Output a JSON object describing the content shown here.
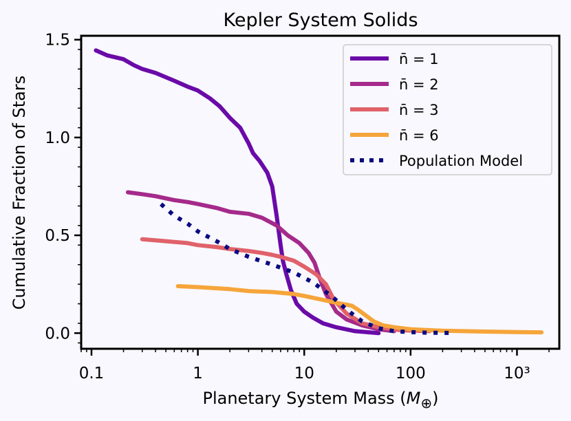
{
  "chart_data": {
    "type": "line",
    "title": "Kepler System Solids",
    "xlabel": "Planetary System Mass (M⊕)",
    "xlabel_main": "Planetary System Mass (",
    "xlabel_sym": "M",
    "xlabel_sub": "⊕",
    "xlabel_close": ")",
    "ylabel": "Cumulative Fraction of Stars",
    "xscale": "log",
    "xlim": [
      0.08,
      2500
    ],
    "ylim": [
      -0.08,
      1.52
    ],
    "xticks": [
      {
        "value": 0.1,
        "label": "0.1"
      },
      {
        "value": 1,
        "label": "1"
      },
      {
        "value": 10,
        "label": "10"
      },
      {
        "value": 100,
        "label": "100"
      },
      {
        "value": 1000,
        "label": "10³"
      }
    ],
    "yticks": [
      {
        "value": 0.0,
        "label": "0.0"
      },
      {
        "value": 0.5,
        "label": "0.5"
      },
      {
        "value": 1.0,
        "label": "1.0"
      },
      {
        "value": 1.5,
        "label": "1.5"
      }
    ],
    "legend_position": "top-right",
    "series": [
      {
        "name": "n̄ = 1",
        "legend_label": "n̄ = 1",
        "color": "#6a0aa8",
        "style": "solid",
        "x": [
          0.11,
          0.14,
          0.2,
          0.25,
          0.3,
          0.4,
          0.6,
          0.8,
          1.0,
          1.3,
          1.6,
          2.0,
          2.5,
          3.0,
          3.3,
          3.8,
          4.5,
          5.0,
          5.5,
          6.0,
          6.3,
          6.8,
          7.5,
          8.5,
          10,
          12,
          15,
          20,
          30,
          50
        ],
        "y": [
          1.445,
          1.42,
          1.4,
          1.37,
          1.35,
          1.33,
          1.29,
          1.26,
          1.24,
          1.2,
          1.16,
          1.1,
          1.05,
          0.97,
          0.92,
          0.88,
          0.82,
          0.75,
          0.6,
          0.45,
          0.37,
          0.3,
          0.22,
          0.15,
          0.11,
          0.08,
          0.05,
          0.03,
          0.01,
          0.0
        ]
      },
      {
        "name": "n̄ = 2",
        "legend_label": "n̄ = 2",
        "color": "#a52a8a",
        "style": "solid",
        "x": [
          0.22,
          0.3,
          0.4,
          0.6,
          0.8,
          1.0,
          1.5,
          2.0,
          3.0,
          4.0,
          5.5,
          7.0,
          9.0,
          11,
          12.5,
          14,
          16,
          20,
          25,
          35,
          50,
          70
        ],
        "y": [
          0.72,
          0.71,
          0.7,
          0.68,
          0.67,
          0.66,
          0.64,
          0.62,
          0.61,
          0.59,
          0.55,
          0.5,
          0.46,
          0.41,
          0.36,
          0.28,
          0.2,
          0.11,
          0.07,
          0.04,
          0.02,
          0.01
        ]
      },
      {
        "name": "n̄ = 3",
        "legend_label": "n̄ = 3",
        "color": "#e0626a",
        "style": "solid",
        "x": [
          0.3,
          0.5,
          0.8,
          1.0,
          1.5,
          2.0,
          3.0,
          4.0,
          5.0,
          6.0,
          8.0,
          10,
          13,
          16,
          19,
          25,
          35,
          50,
          80,
          150
        ],
        "y": [
          0.48,
          0.47,
          0.46,
          0.45,
          0.44,
          0.43,
          0.42,
          0.41,
          0.4,
          0.39,
          0.37,
          0.34,
          0.3,
          0.25,
          0.17,
          0.1,
          0.05,
          0.03,
          0.015,
          0.01
        ]
      },
      {
        "name": "n̄ = 6",
        "legend_label": "n̄ = 6",
        "color": "#f6a53a",
        "style": "solid",
        "x": [
          0.65,
          1.0,
          2.0,
          3.0,
          5.0,
          8.0,
          10,
          15,
          20,
          28,
          32,
          38,
          45,
          55,
          70,
          100,
          200,
          500,
          1000,
          1700
        ],
        "y": [
          0.24,
          0.235,
          0.225,
          0.215,
          0.21,
          0.2,
          0.19,
          0.17,
          0.155,
          0.14,
          0.12,
          0.09,
          0.06,
          0.04,
          0.03,
          0.02,
          0.012,
          0.008,
          0.005,
          0.004
        ]
      },
      {
        "name": "Population Model",
        "legend_label": "Population Model",
        "color": "#0a0a80",
        "style": "dotted",
        "x": [
          0.45,
          0.6,
          0.8,
          1.0,
          1.5,
          2.0,
          3.0,
          5.0,
          8.0,
          12,
          18,
          25,
          35,
          50,
          70,
          100,
          150,
          250
        ],
        "y": [
          0.66,
          0.6,
          0.56,
          0.52,
          0.47,
          0.43,
          0.39,
          0.35,
          0.31,
          0.26,
          0.19,
          0.12,
          0.06,
          0.025,
          0.01,
          0.005,
          0.002,
          0.001
        ]
      }
    ]
  }
}
